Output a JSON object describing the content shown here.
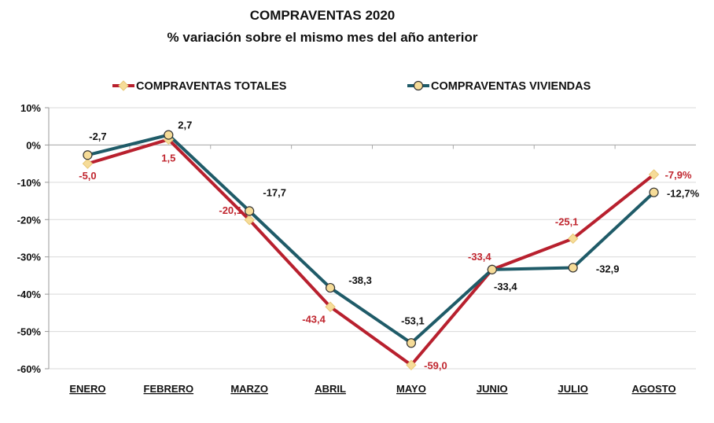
{
  "chart_data": {
    "type": "line",
    "title": "COMPRAVENTAS  2020",
    "subtitle": "% variación sobre el mismo mes del año anterior",
    "xlabel": "",
    "ylabel": "",
    "categories": [
      "ENERO",
      "FEBRERO",
      "MARZO",
      "ABRIL",
      "MAYO",
      "JUNIO",
      "JULIO",
      "AGOSTO"
    ],
    "ylim": [
      -60,
      10
    ],
    "yticks": [
      10,
      0,
      -10,
      -20,
      -30,
      -40,
      -50,
      -60
    ],
    "ytick_labels": [
      "10%",
      "0%",
      "-10%",
      "-20%",
      "-30%",
      "-40%",
      "-50%",
      "-60%"
    ],
    "grid": "horizontal",
    "legend_position": "top",
    "series": [
      {
        "name": "COMPRAVENTAS TOTALES",
        "color": "#b8202e",
        "marker": "diamond",
        "values": [
          -5.0,
          1.5,
          -20.1,
          -43.4,
          -59.0,
          -33.4,
          -25.1,
          -7.9
        ],
        "labels": [
          "-5,0",
          "1,5",
          "-20,1",
          "-43,4",
          "-59,0",
          "-33,4",
          "-25,1",
          "-7,9%"
        ],
        "label_color": "#c0262f"
      },
      {
        "name": "COMPRAVENTAS VIVIENDAS",
        "color": "#1f5b68",
        "marker": "circle",
        "values": [
          -2.7,
          2.7,
          -17.7,
          -38.3,
          -53.1,
          -33.4,
          -32.9,
          -12.7
        ],
        "labels": [
          "-2,7",
          "2,7",
          "-17,7",
          "-38,3",
          "-53,1",
          "-33,4",
          "-32,9",
          "-12,7%"
        ],
        "label_color": "#111111"
      }
    ],
    "marker_fill": "#f6dc98"
  }
}
